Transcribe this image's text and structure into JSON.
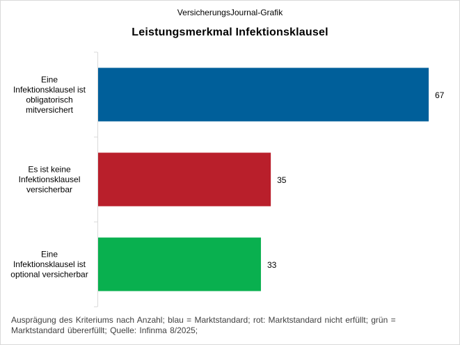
{
  "header": {
    "supertitle": "VersicherungsJournal-Grafik",
    "title": "Leistungsmerkmal  Infektionsklausel"
  },
  "footnote": "Ausprägung  des Kriteriums nach Anzahl; blau = Marktstandard;  rot: Marktstandard nicht erfüllt;  grün = Marktstandard übererfüllt;  Quelle: Infinma   8/2025;",
  "chart_data": {
    "type": "bar",
    "orientation": "horizontal",
    "categories": [
      [
        "Eine",
        "Infektionsklausel ist",
        "obligatorisch",
        "mitversichert"
      ],
      [
        "Es ist keine",
        "Infektionsklausel",
        "versicherbar"
      ],
      [
        "Eine",
        "Infektionsklausel ist",
        "optional versicherbar"
      ]
    ],
    "values": [
      67,
      35,
      33
    ],
    "colors": [
      "#005f9a",
      "#b91f2b",
      "#09b04f"
    ],
    "xlim": [
      0,
      70
    ],
    "grid": false,
    "data_labels": true
  }
}
